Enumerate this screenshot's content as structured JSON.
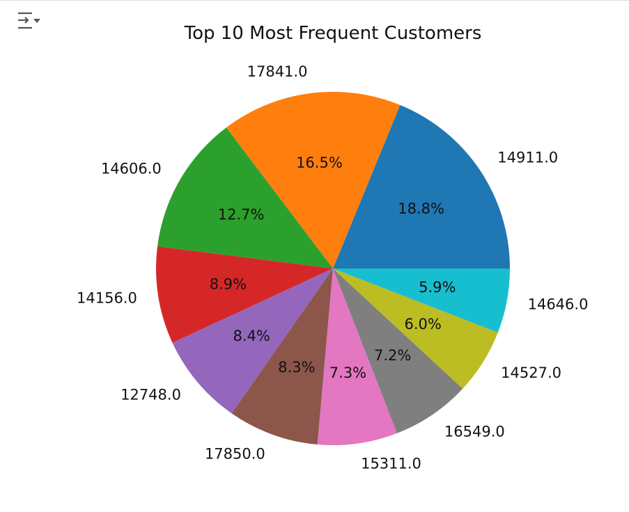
{
  "toolbar": {
    "filter_icon": "filter-list-icon"
  },
  "chart_data": {
    "type": "pie",
    "title": "Top 10 Most Frequent Customers",
    "start_angle_deg": 0,
    "direction": "counterclockwise",
    "slices": [
      {
        "label": "14911.0",
        "pct_label": "18.8%",
        "value": 18.8,
        "color": "#1f77b4"
      },
      {
        "label": "17841.0",
        "pct_label": "16.5%",
        "value": 16.5,
        "color": "#ff7f0e"
      },
      {
        "label": "14606.0",
        "pct_label": "12.7%",
        "value": 12.7,
        "color": "#2ca02c"
      },
      {
        "label": "14156.0",
        "pct_label": "8.9%",
        "value": 8.9,
        "color": "#d62728"
      },
      {
        "label": "12748.0",
        "pct_label": "8.4%",
        "value": 8.4,
        "color": "#9467bd"
      },
      {
        "label": "17850.0",
        "pct_label": "8.3%",
        "value": 8.3,
        "color": "#8c564b"
      },
      {
        "label": "15311.0",
        "pct_label": "7.3%",
        "value": 7.3,
        "color": "#e377c2"
      },
      {
        "label": "16549.0",
        "pct_label": "7.2%",
        "value": 7.2,
        "color": "#7f7f7f"
      },
      {
        "label": "14527.0",
        "pct_label": "6.0%",
        "value": 6.0,
        "color": "#bcbd22"
      },
      {
        "label": "14646.0",
        "pct_label": "5.9%",
        "value": 5.9,
        "color": "#17becf"
      }
    ]
  }
}
